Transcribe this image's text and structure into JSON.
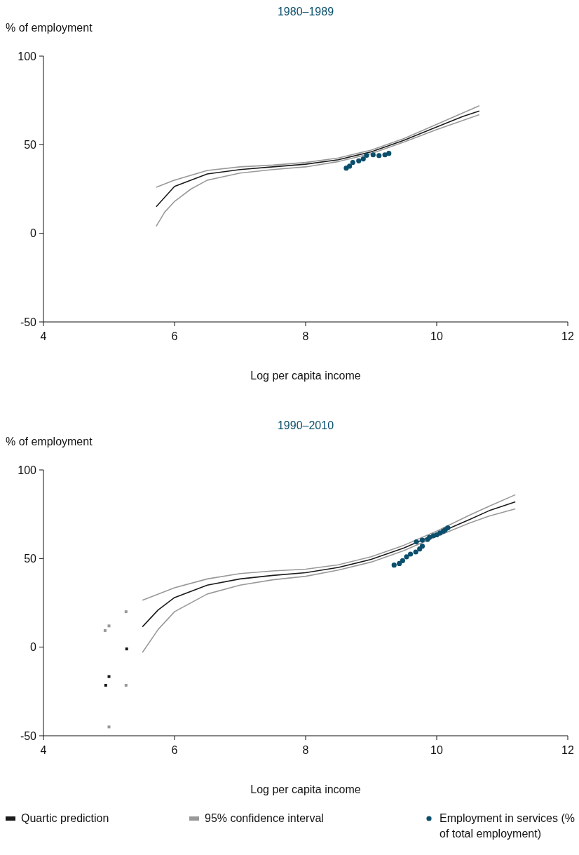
{
  "chart_data": [
    {
      "type": "line",
      "title": "1980–1989",
      "xlabel": "Log per capita income",
      "ylabel": "% of employment",
      "xlim": [
        4,
        12
      ],
      "xticks": [
        4,
        6,
        8,
        10,
        12
      ],
      "ylim": [
        -50,
        100
      ],
      "yticks": [
        -50,
        0,
        50,
        100
      ],
      "grid": false,
      "series": [
        {
          "color": "#1a1a1a",
          "x": [
            5.72,
            6.0,
            6.5,
            7.0,
            7.5,
            8.0,
            8.5,
            9.0,
            9.5,
            10.0,
            10.4,
            10.65
          ],
          "values": [
            15,
            26.5,
            33.5,
            36,
            37.5,
            39,
            41.5,
            46,
            52.5,
            60,
            66,
            69
          ]
        },
        {
          "color": "#999999",
          "x": [
            5.72,
            6.0,
            6.5,
            7.0,
            7.5,
            8.0,
            8.5,
            9.0,
            9.5,
            10.0,
            10.65
          ],
          "values": [
            26,
            30,
            35.5,
            37.5,
            38.5,
            40,
            42.5,
            47,
            53.5,
            61.5,
            72
          ]
        },
        {
          "color": "#999999",
          "x": [
            5.72,
            5.85,
            6.0,
            6.25,
            6.5,
            7.0,
            7.5,
            8.0,
            8.5,
            9.0,
            9.5,
            10.0,
            10.65
          ],
          "values": [
            4,
            12,
            18,
            25,
            30,
            34,
            36,
            37.5,
            40.5,
            45,
            51.5,
            58.5,
            67
          ]
        },
        {
          "type": "scatter",
          "color": "#0b4f6c",
          "marker": "circle",
          "x": [
            8.62,
            8.67,
            8.72,
            8.81,
            8.88,
            8.93,
            9.03,
            9.12,
            9.21,
            9.27
          ],
          "values": [
            36.8,
            37.9,
            40,
            40.9,
            42,
            44,
            44.3,
            43.9,
            44.3,
            45.1
          ]
        }
      ]
    },
    {
      "type": "line",
      "title": "1990–2010",
      "xlabel": "Log per capita income",
      "ylabel": "% of employment",
      "xlim": [
        4,
        12
      ],
      "xticks": [
        4,
        6,
        8,
        10,
        12
      ],
      "ylim": [
        -50,
        100
      ],
      "yticks": [
        -50,
        0,
        50,
        100
      ],
      "grid": false,
      "legend": "bottom",
      "series": [
        {
          "name": "Quartic prediction",
          "color": "#1a1a1a",
          "x": [
            5.51,
            5.75,
            6.0,
            6.5,
            7.0,
            7.5,
            8.0,
            8.5,
            9.0,
            9.5,
            10.0,
            10.5,
            10.8,
            11.2
          ],
          "values": [
            11.5,
            21,
            28,
            35,
            38.5,
            40.5,
            42,
            45,
            49.5,
            56,
            64,
            72,
            77,
            82
          ]
        },
        {
          "name": "95% confidence interval",
          "color": "#999999",
          "x": [
            5.51,
            6.0,
            6.5,
            7.0,
            7.5,
            8.0,
            8.5,
            9.0,
            9.5,
            10.0,
            10.5,
            10.8,
            11.2
          ],
          "values": [
            26.5,
            33.5,
            38.5,
            41.5,
            43,
            44,
            46.5,
            51,
            57.5,
            65.5,
            74.5,
            79.5,
            86
          ]
        },
        {
          "color": "#999999",
          "x": [
            5.51,
            5.75,
            6.0,
            6.5,
            7.0,
            7.5,
            8.0,
            8.5,
            9.0,
            9.5,
            10.0,
            10.5,
            10.8,
            11.2
          ],
          "values": [
            -3,
            10,
            20,
            30,
            35,
            38,
            40,
            43.5,
            48,
            54.5,
            62.5,
            70,
            74,
            78
          ]
        },
        {
          "type": "scatter",
          "color": "#999999",
          "marker": "square",
          "x": [
            4.94,
            5.0,
            5.26,
            5.0,
            5.26
          ],
          "values": [
            9.4,
            12,
            20,
            -45,
            -21.5
          ]
        },
        {
          "type": "scatter",
          "color": "#1a1a1a",
          "marker": "square",
          "x": [
            4.95,
            5.0,
            5.27
          ],
          "values": [
            -21.5,
            -16.6,
            -1
          ]
        },
        {
          "type": "scatter",
          "name": "Employment in services (% of total employment)",
          "color": "#0b4f6c",
          "marker": "circle",
          "x": [
            9.35,
            9.43,
            9.48,
            9.54,
            9.6,
            9.68,
            9.74,
            9.78,
            9.69,
            9.78,
            9.86,
            9.89,
            9.95,
            10.0,
            10.05,
            10.1,
            10.13,
            10.17
          ],
          "values": [
            46.3,
            47.2,
            48.8,
            51,
            52.5,
            53.7,
            55.4,
            57,
            59.4,
            60.4,
            60.8,
            62,
            62.9,
            63.4,
            64.4,
            65.4,
            66.2,
            67.3
          ]
        }
      ]
    }
  ]
}
